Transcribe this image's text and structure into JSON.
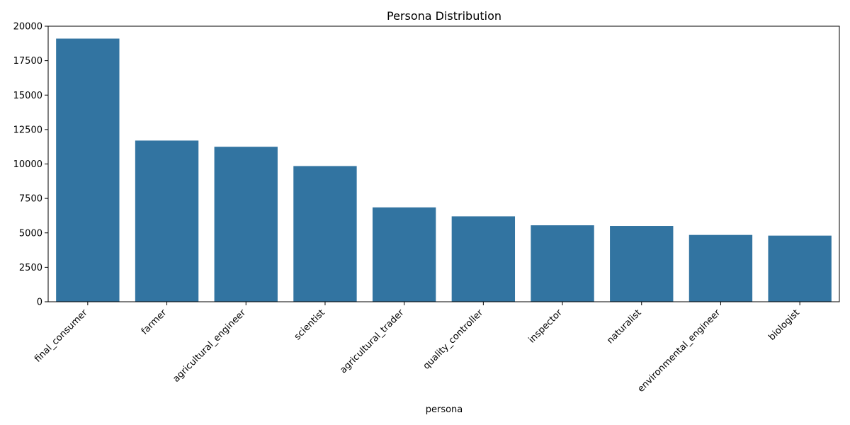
{
  "chart_data": {
    "type": "bar",
    "title": "Persona Distribution",
    "xlabel": "persona",
    "ylabel": "",
    "categories": [
      "final_consumer",
      "farmer",
      "agricultural_engineer",
      "scientist",
      "agricultural_trader",
      "quality_controller",
      "inspector",
      "naturalist",
      "environmental_engineer",
      "biologist"
    ],
    "values": [
      19100,
      11700,
      11250,
      9850,
      6850,
      6200,
      5550,
      5500,
      4850,
      4800
    ],
    "ylim": [
      0,
      20000
    ],
    "yticks": [
      0,
      2500,
      5000,
      7500,
      10000,
      12500,
      15000,
      17500,
      20000
    ],
    "grid": false,
    "bar_color": "#3274a1"
  }
}
